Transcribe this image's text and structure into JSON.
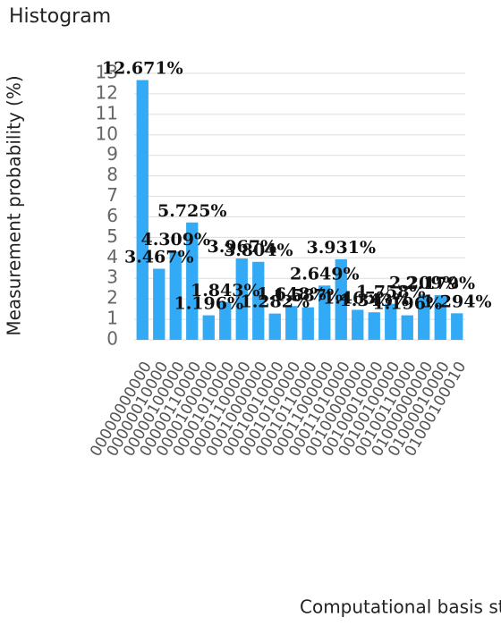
{
  "chart_data": {
    "type": "bar",
    "title": "Histogram",
    "x_label": "Computational basis states",
    "y_label": "Measurement probability (%)",
    "categories": [
      "00000000000",
      "00000010000",
      "00000100000",
      "00000110000",
      "00001000000",
      "00001010000",
      "00001100000",
      "00010000000",
      "00010010000",
      "00010100000",
      "00010110000",
      "00011000000",
      "00011010000",
      "00100000000",
      "00100010000",
      "00100100000",
      "00100110000",
      "01000000000",
      "01000010000",
      "01000100010"
    ],
    "values": [
      12.671,
      3.467,
      4.309,
      5.725,
      1.196,
      1.843,
      3.967,
      3.804,
      1.282,
      1.648,
      1.587,
      2.649,
      3.931,
      1.465,
      1.343,
      1.758,
      1.196,
      2.209,
      2.179,
      1.294
    ],
    "value_labels": [
      "12.671%",
      "3.467%",
      "4.309%",
      "5.725%",
      "1.196%",
      "1.843%",
      "3.967%",
      "3.804%",
      "1.282%",
      "1.648%",
      "1.587%",
      "2.649%",
      "3.931%",
      "1.465%",
      "1.343%",
      "1.758%",
      "1.196%",
      "2.209%",
      "2.179%",
      "1.294%"
    ],
    "color": "#33aaf5",
    "ylim": [
      0,
      13
    ],
    "yticks": [
      0,
      1,
      2,
      3,
      4,
      5,
      6,
      7,
      8,
      9,
      10,
      11,
      12,
      13
    ],
    "grid": true
  }
}
